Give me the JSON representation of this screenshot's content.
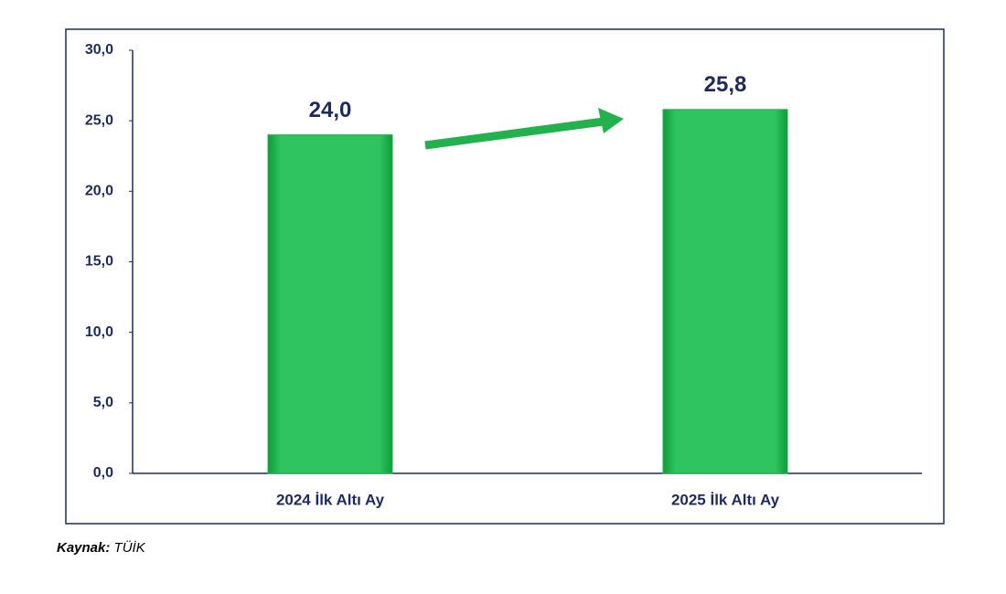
{
  "chart_data": {
    "type": "bar",
    "categories": [
      "2024 İlk Altı Ay",
      "2025 İlk Altı Ay"
    ],
    "values": [
      24.0,
      25.8
    ],
    "value_labels": [
      "24,0",
      "25,8"
    ],
    "color": "#22b14c",
    "ylim": [
      0,
      30
    ],
    "yticks": [
      {
        "value": 0,
        "label": "0,0"
      },
      {
        "value": 5,
        "label": "5,0"
      },
      {
        "value": 10,
        "label": "10,0"
      },
      {
        "value": 15,
        "label": "15,0"
      },
      {
        "value": 20,
        "label": "20,0"
      },
      {
        "value": 25,
        "label": "25,0"
      },
      {
        "value": 30,
        "label": "30,0"
      }
    ],
    "grid": false,
    "source": {
      "label": "Kaynak:",
      "text": "TÜİK"
    }
  }
}
